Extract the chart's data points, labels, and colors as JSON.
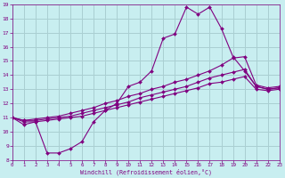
{
  "xlabel": "Windchill (Refroidissement éolien,°C)",
  "bg_color": "#c8eef0",
  "grid_color": "#aacfd2",
  "line_color": "#800080",
  "xlim": [
    0,
    23
  ],
  "ylim": [
    8,
    19
  ],
  "xticks": [
    0,
    1,
    2,
    3,
    4,
    5,
    6,
    7,
    8,
    9,
    10,
    11,
    12,
    13,
    14,
    15,
    16,
    17,
    18,
    19,
    20,
    21,
    22,
    23
  ],
  "yticks": [
    8,
    9,
    10,
    11,
    12,
    13,
    14,
    15,
    16,
    17,
    18,
    19
  ],
  "series": [
    {
      "x": [
        0,
        1,
        2,
        3,
        4,
        5,
        6,
        7,
        8,
        9,
        10,
        11,
        12,
        13,
        14,
        15,
        16,
        17,
        18,
        19,
        20,
        21,
        22,
        23
      ],
      "y": [
        11.0,
        10.5,
        10.7,
        8.5,
        8.5,
        8.8,
        9.3,
        10.7,
        11.5,
        12.0,
        13.2,
        13.5,
        14.3,
        16.6,
        16.9,
        18.8,
        18.3,
        18.8,
        17.3,
        15.3,
        14.3,
        13.2,
        13.0,
        13.1
      ]
    },
    {
      "x": [
        0,
        1,
        2,
        3,
        4,
        5,
        6,
        7,
        8,
        9,
        10,
        11,
        12,
        13,
        14,
        15,
        16,
        17,
        18,
        19,
        20,
        21,
        22,
        23
      ],
      "y": [
        11.0,
        10.8,
        10.9,
        11.0,
        11.1,
        11.3,
        11.5,
        11.7,
        12.0,
        12.2,
        12.5,
        12.7,
        13.0,
        13.2,
        13.5,
        13.7,
        14.0,
        14.3,
        14.7,
        15.2,
        15.3,
        13.3,
        13.1,
        13.2
      ]
    },
    {
      "x": [
        0,
        1,
        2,
        3,
        4,
        5,
        6,
        7,
        8,
        9,
        10,
        11,
        12,
        13,
        14,
        15,
        16,
        17,
        18,
        19,
        20,
        21,
        22,
        23
      ],
      "y": [
        11.0,
        10.8,
        10.8,
        10.9,
        11.0,
        11.1,
        11.3,
        11.5,
        11.7,
        11.9,
        12.1,
        12.4,
        12.6,
        12.8,
        13.0,
        13.2,
        13.5,
        13.8,
        14.0,
        14.2,
        14.4,
        13.2,
        13.0,
        13.1
      ]
    },
    {
      "x": [
        0,
        1,
        2,
        3,
        4,
        5,
        6,
        7,
        8,
        9,
        10,
        11,
        12,
        13,
        14,
        15,
        16,
        17,
        18,
        19,
        20,
        21,
        22,
        23
      ],
      "y": [
        11.0,
        10.7,
        10.7,
        10.8,
        10.9,
        11.0,
        11.1,
        11.3,
        11.5,
        11.7,
        11.9,
        12.1,
        12.3,
        12.5,
        12.7,
        12.9,
        13.1,
        13.4,
        13.5,
        13.7,
        13.9,
        13.0,
        12.9,
        13.0
      ]
    }
  ]
}
